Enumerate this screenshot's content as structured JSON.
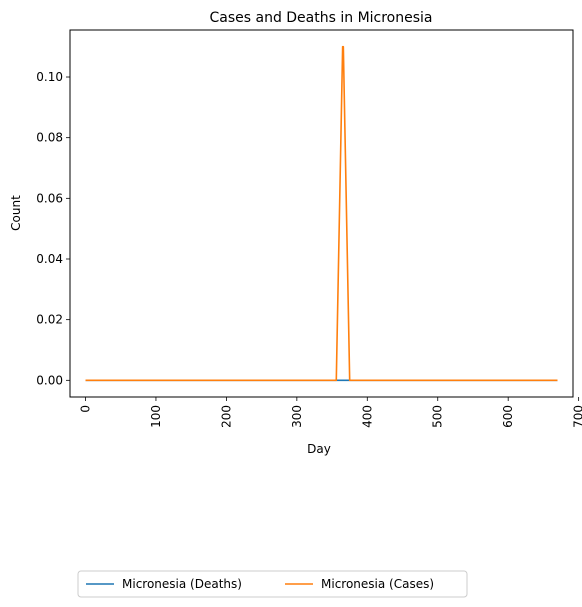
{
  "chart_data": {
    "type": "line",
    "title": "Cases and Deaths in Micronesia",
    "xlabel": "Day",
    "ylabel": "Count",
    "xlim": [
      -22,
      692
    ],
    "ylim": [
      -0.0055,
      0.1155
    ],
    "xticks": [
      0,
      100,
      200,
      300,
      400,
      500,
      600,
      700
    ],
    "yticks": [
      0.0,
      0.02,
      0.04,
      0.06,
      0.08,
      0.1
    ],
    "ytick_labels": [
      "0.00",
      "0.02",
      "0.04",
      "0.06",
      "0.08",
      "0.10"
    ],
    "grid": false,
    "legend_placement": "below",
    "series": [
      {
        "name": "Micronesia (Deaths)",
        "color": "#1f77b4",
        "x": [
          0,
          670
        ],
        "y": [
          0,
          0
        ]
      },
      {
        "name": "Micronesia (Cases)",
        "color": "#ff7f0e",
        "x": [
          0,
          356,
          365,
          366,
          375,
          670
        ],
        "y": [
          0,
          0,
          0.11,
          0.11,
          0,
          0
        ]
      }
    ]
  }
}
